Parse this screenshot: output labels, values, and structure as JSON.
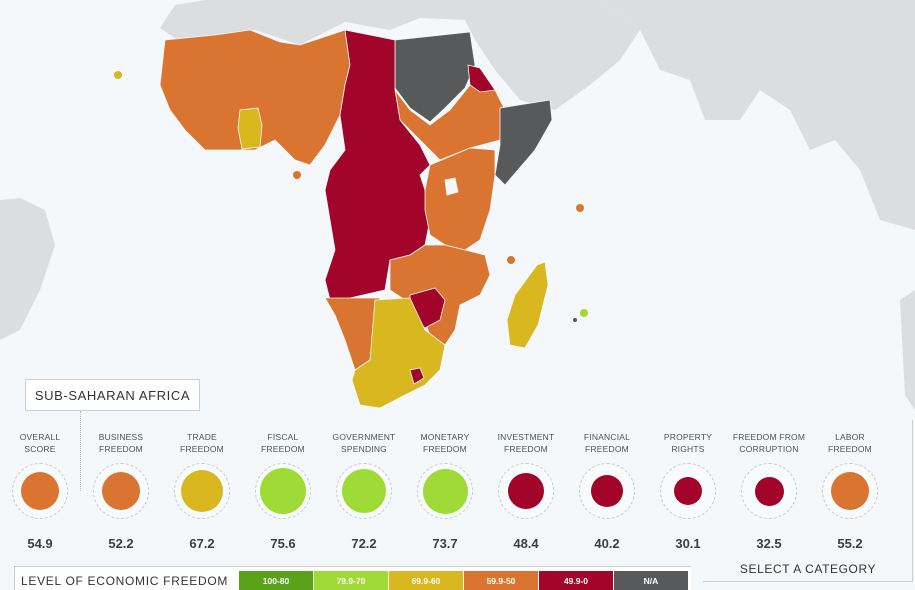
{
  "colors": {
    "ocean": "#f4f8fa",
    "other_land": "#dcdde0",
    "na": "#58595b",
    "high": "#5aa21a",
    "mostly_free": "#9fda37",
    "moderately_free": "#d8b71f",
    "mostly_unfree": "#d97431",
    "repressed": "#a2042a"
  },
  "region": {
    "label": "SUB-SAHARAN AFRICA"
  },
  "categories": [
    {
      "line1": "OVERALL",
      "line2": "SCORE",
      "score": "54.9",
      "color": "#d97431",
      "size": 38
    },
    {
      "line1": "BUSINESS",
      "line2": "FREEDOM",
      "score": "52.2",
      "color": "#d97431",
      "size": 38
    },
    {
      "line1": "TRADE",
      "line2": "FREEDOM",
      "score": "67.2",
      "color": "#d8b71f",
      "size": 42
    },
    {
      "line1": "FISCAL",
      "line2": "FREEDOM",
      "score": "75.6",
      "color": "#9fda37",
      "size": 46
    },
    {
      "line1": "GOVERNMENT",
      "line2": "SPENDING",
      "score": "72.2",
      "color": "#9fda37",
      "size": 44
    },
    {
      "line1": "MONETARY",
      "line2": "FREEDOM",
      "score": "73.7",
      "color": "#9fda37",
      "size": 45
    },
    {
      "line1": "INVESTMENT",
      "line2": "FREEDOM",
      "score": "48.4",
      "color": "#a2042a",
      "size": 36
    },
    {
      "line1": "FINANCIAL",
      "line2": "FREEDOM",
      "score": "40.2",
      "color": "#a2042a",
      "size": 32
    },
    {
      "line1": "PROPERTY",
      "line2": "RIGHTS",
      "score": "30.1",
      "color": "#a2042a",
      "size": 28
    },
    {
      "line1": "FREEDOM FROM",
      "line2": "CORRUPTION",
      "score": "32.5",
      "color": "#a2042a",
      "size": 29
    },
    {
      "line1": "LABOR",
      "line2": "FREEDOM",
      "score": "55.2",
      "color": "#d97431",
      "size": 38
    }
  ],
  "legend": {
    "title": "LEVEL OF ECONOMIC FREEDOM",
    "items": [
      {
        "label": "100-80",
        "color": "#5aa21a"
      },
      {
        "label": "79.9-70",
        "color": "#9fda37"
      },
      {
        "label": "69.9-60",
        "color": "#d8b71f"
      },
      {
        "label": "59.9-50",
        "color": "#d97431"
      },
      {
        "label": "49.9-0",
        "color": "#a2042a"
      },
      {
        "label": "N/A",
        "color": "#58595b"
      }
    ]
  },
  "select_category": {
    "label": "SELECT A CATEGORY"
  }
}
